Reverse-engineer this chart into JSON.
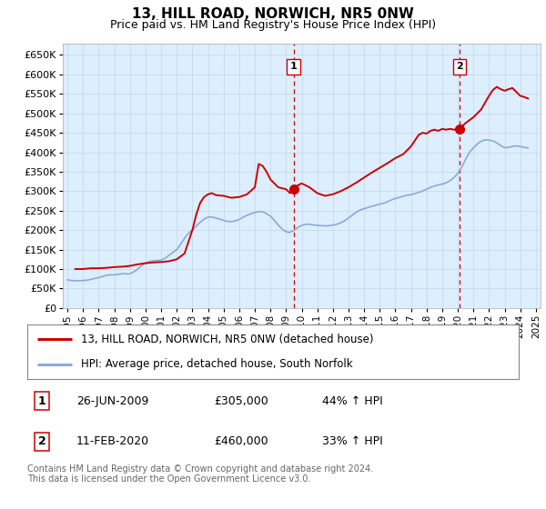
{
  "title": "13, HILL ROAD, NORWICH, NR5 0NW",
  "subtitle": "Price paid vs. HM Land Registry's House Price Index (HPI)",
  "ylabel_ticks": [
    "£0",
    "£50K",
    "£100K",
    "£150K",
    "£200K",
    "£250K",
    "£300K",
    "£350K",
    "£400K",
    "£450K",
    "£500K",
    "£550K",
    "£600K",
    "£650K"
  ],
  "ytick_values": [
    0,
    50000,
    100000,
    150000,
    200000,
    250000,
    300000,
    350000,
    400000,
    450000,
    500000,
    550000,
    600000,
    650000
  ],
  "ylim": [
    0,
    680000
  ],
  "xlim_start": 1994.7,
  "xlim_end": 2025.3,
  "vline1_x": 2009.483,
  "vline2_x": 2020.11,
  "marker1_x": 2009.483,
  "marker1_y": 305000,
  "marker2_x": 2020.11,
  "marker2_y": 460000,
  "marker_color": "#cc0000",
  "marker_size": 7,
  "line_color_red": "#cc0000",
  "line_color_blue": "#88aadd",
  "vline_color": "#cc0000",
  "grid_color": "#c8daea",
  "plot_bg_color": "#ddeeff",
  "legend_label_red": "13, HILL ROAD, NORWICH, NR5 0NW (detached house)",
  "legend_label_blue": "HPI: Average price, detached house, South Norfolk",
  "annotation1_label": "1",
  "annotation2_label": "2",
  "ann1_y": 620000,
  "ann2_y": 620000,
  "note1_num": "1",
  "note1_date": "26-JUN-2009",
  "note1_price": "£305,000",
  "note1_hpi": "44% ↑ HPI",
  "note2_num": "2",
  "note2_date": "11-FEB-2020",
  "note2_price": "£460,000",
  "note2_hpi": "33% ↑ HPI",
  "footer": "Contains HM Land Registry data © Crown copyright and database right 2024.\nThis data is licensed under the Open Government Licence v3.0.",
  "hpi_data_years": [
    1995.0,
    1995.17,
    1995.33,
    1995.5,
    1995.67,
    1995.83,
    1996.0,
    1996.17,
    1996.33,
    1996.5,
    1996.67,
    1996.83,
    1997.0,
    1997.17,
    1997.33,
    1997.5,
    1997.67,
    1997.83,
    1998.0,
    1998.17,
    1998.33,
    1998.5,
    1998.67,
    1998.83,
    1999.0,
    1999.17,
    1999.33,
    1999.5,
    1999.67,
    1999.83,
    2000.0,
    2000.17,
    2000.33,
    2000.5,
    2000.67,
    2000.83,
    2001.0,
    2001.17,
    2001.33,
    2001.5,
    2001.67,
    2001.83,
    2002.0,
    2002.17,
    2002.33,
    2002.5,
    2002.67,
    2002.83,
    2003.0,
    2003.17,
    2003.33,
    2003.5,
    2003.67,
    2003.83,
    2004.0,
    2004.17,
    2004.33,
    2004.5,
    2004.67,
    2004.83,
    2005.0,
    2005.17,
    2005.33,
    2005.5,
    2005.67,
    2005.83,
    2006.0,
    2006.17,
    2006.33,
    2006.5,
    2006.67,
    2006.83,
    2007.0,
    2007.17,
    2007.33,
    2007.5,
    2007.67,
    2007.83,
    2008.0,
    2008.17,
    2008.33,
    2008.5,
    2008.67,
    2008.83,
    2009.0,
    2009.17,
    2009.33,
    2009.5,
    2009.67,
    2009.83,
    2010.0,
    2010.17,
    2010.33,
    2010.5,
    2010.67,
    2010.83,
    2011.0,
    2011.17,
    2011.33,
    2011.5,
    2011.67,
    2011.83,
    2012.0,
    2012.17,
    2012.33,
    2012.5,
    2012.67,
    2012.83,
    2013.0,
    2013.17,
    2013.33,
    2013.5,
    2013.67,
    2013.83,
    2014.0,
    2014.17,
    2014.33,
    2014.5,
    2014.67,
    2014.83,
    2015.0,
    2015.17,
    2015.33,
    2015.5,
    2015.67,
    2015.83,
    2016.0,
    2016.17,
    2016.33,
    2016.5,
    2016.67,
    2016.83,
    2017.0,
    2017.17,
    2017.33,
    2017.5,
    2017.67,
    2017.83,
    2018.0,
    2018.17,
    2018.33,
    2018.5,
    2018.67,
    2018.83,
    2019.0,
    2019.17,
    2019.33,
    2019.5,
    2019.67,
    2019.83,
    2020.0,
    2020.17,
    2020.33,
    2020.5,
    2020.67,
    2020.83,
    2021.0,
    2021.17,
    2021.33,
    2021.5,
    2021.67,
    2021.83,
    2022.0,
    2022.17,
    2022.33,
    2022.5,
    2022.67,
    2022.83,
    2023.0,
    2023.17,
    2023.33,
    2023.5,
    2023.67,
    2023.83,
    2024.0,
    2024.17,
    2024.33,
    2024.5
  ],
  "hpi_data_values": [
    72000,
    71000,
    70500,
    70000,
    70000,
    70000,
    70500,
    71000,
    72000,
    73500,
    75000,
    76500,
    78000,
    80000,
    82000,
    84000,
    85000,
    85000,
    85000,
    86000,
    87000,
    88000,
    88000,
    87000,
    88000,
    91000,
    95000,
    100000,
    106000,
    111000,
    115000,
    118000,
    120000,
    121000,
    122000,
    122000,
    123000,
    126000,
    130000,
    135000,
    140000,
    145000,
    150000,
    159000,
    169000,
    179000,
    188000,
    195000,
    200000,
    207000,
    214000,
    220000,
    226000,
    230000,
    233000,
    234000,
    233000,
    231000,
    229000,
    227000,
    225000,
    223000,
    222000,
    222000,
    223000,
    225000,
    227000,
    231000,
    235000,
    238000,
    241000,
    243000,
    245000,
    247000,
    248000,
    247000,
    244000,
    240000,
    236000,
    229000,
    221000,
    213000,
    206000,
    200000,
    196000,
    194000,
    196000,
    199000,
    204000,
    209000,
    212000,
    214000,
    215000,
    215000,
    214000,
    213000,
    212000,
    212000,
    211000,
    211000,
    211000,
    212000,
    213000,
    214000,
    216000,
    219000,
    222000,
    226000,
    231000,
    236000,
    241000,
    246000,
    250000,
    253000,
    255000,
    257000,
    259000,
    261000,
    263000,
    265000,
    267000,
    268000,
    270000,
    273000,
    276000,
    279000,
    281000,
    283000,
    285000,
    287000,
    289000,
    290000,
    291000,
    293000,
    295000,
    297000,
    299000,
    302000,
    305000,
    308000,
    311000,
    313000,
    315000,
    317000,
    318000,
    320000,
    323000,
    327000,
    332000,
    338000,
    346000,
    356000,
    368000,
    382000,
    394000,
    404000,
    411000,
    418000,
    424000,
    428000,
    431000,
    432000,
    431000,
    430000,
    428000,
    424000,
    419000,
    415000,
    412000,
    412000,
    413000,
    415000,
    416000,
    416000,
    415000,
    413000,
    412000,
    411000
  ],
  "price_data_years": [
    1995.5,
    1996.0,
    1996.5,
    1997.0,
    1997.5,
    1998.0,
    1998.5,
    1999.0,
    1999.5,
    2000.0,
    2000.5,
    2001.0,
    2001.5,
    2002.0,
    2002.5,
    2003.0,
    2003.25,
    2003.5,
    2003.75,
    2004.0,
    2004.25,
    2004.5,
    2005.0,
    2005.5,
    2006.0,
    2006.5,
    2007.0,
    2007.25,
    2007.5,
    2007.75,
    2008.0,
    2008.25,
    2008.5,
    2009.0,
    2009.25,
    2009.483,
    2009.75,
    2010.0,
    2010.5,
    2011.0,
    2011.5,
    2012.0,
    2012.5,
    2013.0,
    2013.5,
    2014.0,
    2014.5,
    2015.0,
    2015.5,
    2016.0,
    2016.5,
    2017.0,
    2017.25,
    2017.5,
    2017.75,
    2018.0,
    2018.25,
    2018.5,
    2018.75,
    2019.0,
    2019.25,
    2019.5,
    2019.75,
    2020.11,
    2020.5,
    2021.0,
    2021.5,
    2022.0,
    2022.25,
    2022.5,
    2022.75,
    2023.0,
    2023.25,
    2023.5,
    2023.75,
    2024.0,
    2024.25,
    2024.5
  ],
  "price_data_values": [
    100000,
    100000,
    102000,
    102000,
    103000,
    105000,
    106000,
    108000,
    112000,
    115000,
    117000,
    118000,
    120000,
    125000,
    140000,
    200000,
    240000,
    270000,
    285000,
    292000,
    295000,
    290000,
    288000,
    283000,
    285000,
    292000,
    310000,
    370000,
    365000,
    350000,
    330000,
    320000,
    310000,
    305000,
    295000,
    305000,
    315000,
    320000,
    310000,
    295000,
    288000,
    292000,
    300000,
    310000,
    322000,
    335000,
    348000,
    360000,
    372000,
    385000,
    395000,
    415000,
    430000,
    445000,
    450000,
    448000,
    455000,
    458000,
    455000,
    460000,
    458000,
    460000,
    458000,
    460000,
    475000,
    490000,
    510000,
    545000,
    560000,
    568000,
    562000,
    558000,
    562000,
    565000,
    555000,
    545000,
    542000,
    538000
  ],
  "xtick_years": [
    1995,
    1996,
    1997,
    1998,
    1999,
    2000,
    2001,
    2002,
    2003,
    2004,
    2005,
    2006,
    2007,
    2008,
    2009,
    2010,
    2011,
    2012,
    2013,
    2014,
    2015,
    2016,
    2017,
    2018,
    2019,
    2020,
    2021,
    2022,
    2023,
    2024,
    2025
  ]
}
